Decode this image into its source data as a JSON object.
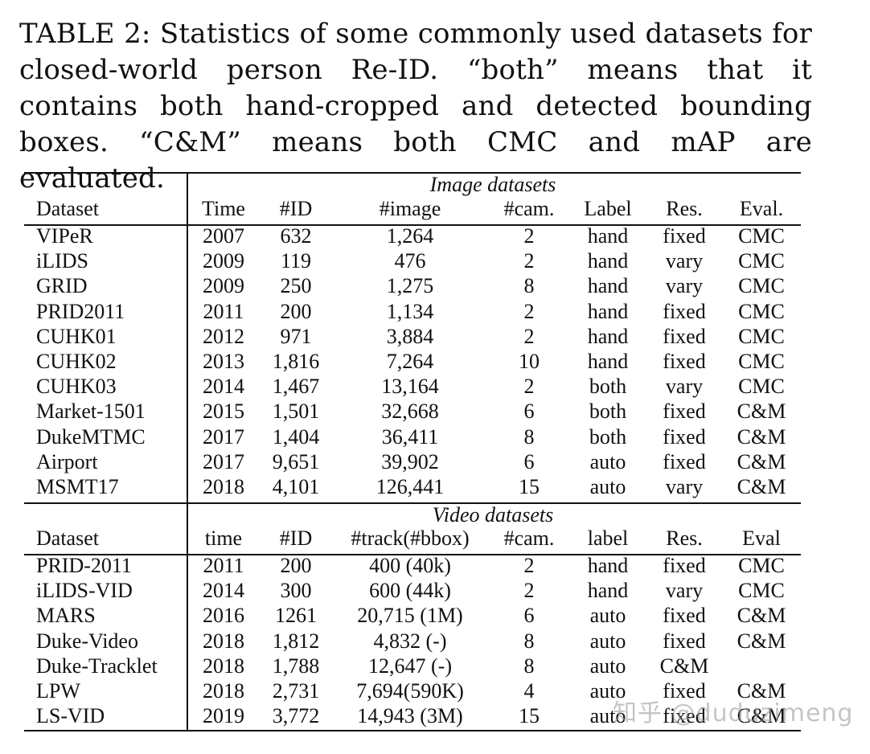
{
  "caption": "TABLE 2: Statistics of some commonly used datasets for closed-world person Re-ID. “both” means that it contains both hand-cropped and detected bounding boxes. “C&M” means both CMC and mAP are evaluated.",
  "image_section": {
    "title": "Image datasets",
    "headers": [
      "Dataset",
      "Time",
      "#ID",
      "#image",
      "#cam.",
      "Label",
      "Res.",
      "Eval."
    ],
    "rows": [
      [
        "VIPeR",
        "2007",
        "632",
        "1,264",
        "2",
        "hand",
        "fixed",
        "CMC"
      ],
      [
        "iLIDS",
        "2009",
        "119",
        "476",
        "2",
        "hand",
        "vary",
        "CMC"
      ],
      [
        "GRID",
        "2009",
        "250",
        "1,275",
        "8",
        "hand",
        "vary",
        "CMC"
      ],
      [
        "PRID2011",
        "2011",
        "200",
        "1,134",
        "2",
        "hand",
        "fixed",
        "CMC"
      ],
      [
        "CUHK01",
        "2012",
        "971",
        "3,884",
        "2",
        "hand",
        "fixed",
        "CMC"
      ],
      [
        "CUHK02",
        "2013",
        "1,816",
        "7,264",
        "10",
        "hand",
        "fixed",
        "CMC"
      ],
      [
        "CUHK03",
        "2014",
        "1,467",
        "13,164",
        "2",
        "both",
        "vary",
        "CMC"
      ],
      [
        "Market-1501",
        "2015",
        "1,501",
        "32,668",
        "6",
        "both",
        "fixed",
        "C&M"
      ],
      [
        "DukeMTMC",
        "2017",
        "1,404",
        "36,411",
        "8",
        "both",
        "fixed",
        "C&M"
      ],
      [
        "Airport",
        "2017",
        "9,651",
        "39,902",
        "6",
        "auto",
        "fixed",
        "C&M"
      ],
      [
        "MSMT17",
        "2018",
        "4,101",
        "126,441",
        "15",
        "auto",
        "vary",
        "C&M"
      ]
    ]
  },
  "video_section": {
    "title": "Video datasets",
    "headers": [
      "Dataset",
      "time",
      "#ID",
      "#track(#bbox)",
      "#cam.",
      "label",
      "Res.",
      "Eval"
    ],
    "rows": [
      [
        "PRID-2011",
        "2011",
        "200",
        "400 (40k)",
        "2",
        "hand",
        "fixed",
        "CMC"
      ],
      [
        "iLIDS-VID",
        "2014",
        "300",
        "600 (44k)",
        "2",
        "hand",
        "vary",
        "CMC"
      ],
      [
        "MARS",
        "2016",
        "1261",
        "20,715 (1M)",
        "6",
        "auto",
        "fixed",
        "C&M"
      ],
      [
        "Duke-Video",
        "2018",
        "1,812",
        "4,832 (-)",
        "8",
        "auto",
        "fixed",
        "C&M"
      ],
      [
        "Duke-Tracklet",
        "2018",
        "1,788",
        "12,647 (-)",
        "8",
        "auto",
        "C&M",
        ""
      ],
      [
        "LPW",
        "2018",
        "2,731",
        "7,694(590K)",
        "4",
        "auto",
        "fixed",
        "C&M"
      ],
      [
        "LS-VID",
        "2019",
        "3,772",
        "14,943 (3M)",
        "15",
        "auto",
        "fixed",
        "C&M"
      ]
    ]
  },
  "watermark": "知乎 @duduzimeng"
}
